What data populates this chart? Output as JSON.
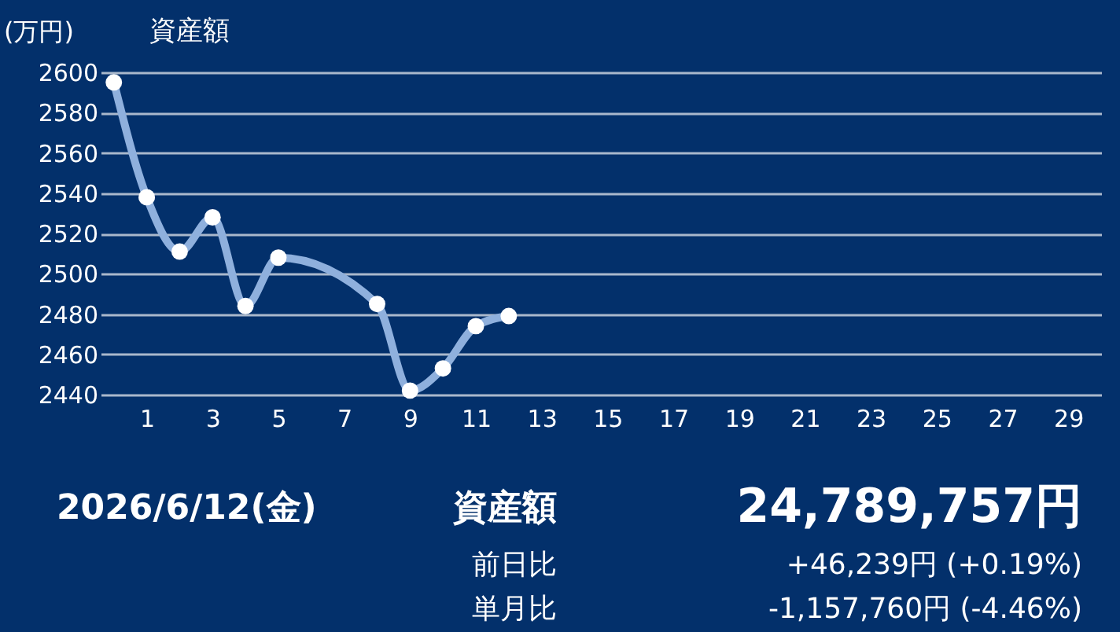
{
  "chart_data": {
    "type": "line",
    "title": "資産額",
    "ylabel": "(万円)",
    "x": [
      0,
      1,
      2,
      3,
      4,
      5,
      8,
      9,
      10,
      11,
      12
    ],
    "series": [
      {
        "color": "#8fb0dd",
        "values": [
          2595,
          2538,
          2511,
          2528,
          2484,
          2508,
          2485,
          2442,
          2453,
          2474,
          2479
        ]
      }
    ],
    "xlim": [
      -0.4,
      30
    ],
    "xticks": [
      1,
      3,
      5,
      7,
      9,
      11,
      13,
      15,
      17,
      19,
      21,
      23,
      25,
      27,
      29
    ],
    "ylim": [
      2440,
      2600
    ],
    "yticks": [
      2440,
      2460,
      2480,
      2500,
      2520,
      2540,
      2560,
      2580,
      2600
    ],
    "grid": "y",
    "marker": "circle",
    "line_style": "solid",
    "annotations": [
      "2026/6/12(金)",
      "資産額",
      "24,789,757円",
      "前日比",
      "+46,239円 (+0.19%)",
      "単月比",
      "-1,157,760円 (-4.46%)"
    ]
  }
}
